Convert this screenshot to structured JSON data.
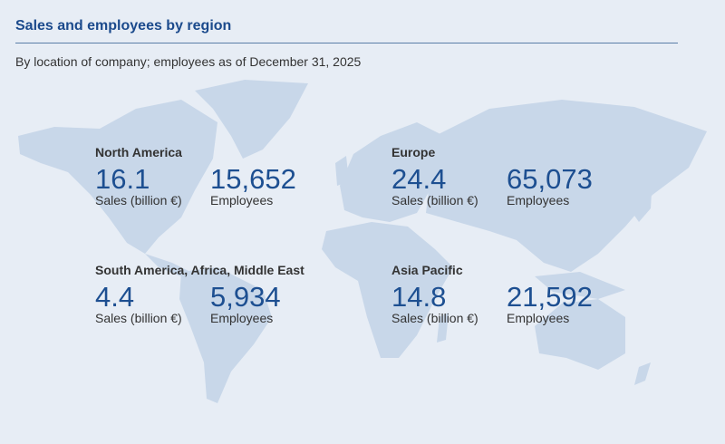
{
  "header": {
    "title": "Sales and employees by region",
    "subtitle": "By location of company; employees as of December 31, 2025"
  },
  "colors": {
    "background": "#e7edf5",
    "map": "#c8d7e9",
    "accent": "#1d4f91"
  },
  "regions": [
    {
      "name": "North America",
      "sales": "16.1",
      "sales_label": "Sales (billion €)",
      "employees": "15,652",
      "employees_label": "Employees"
    },
    {
      "name": "Europe",
      "sales": "24.4",
      "sales_label": "Sales (billion €)",
      "employees": "65,073",
      "employees_label": "Employees"
    },
    {
      "name": "South America, Africa, Middle East",
      "sales": "4.4",
      "sales_label": "Sales (billion €)",
      "employees": "5,934",
      "employees_label": "Employees"
    },
    {
      "name": "Asia Pacific",
      "sales": "14.8",
      "sales_label": "Sales (billion €)",
      "employees": "21,592",
      "employees_label": "Employees"
    }
  ]
}
